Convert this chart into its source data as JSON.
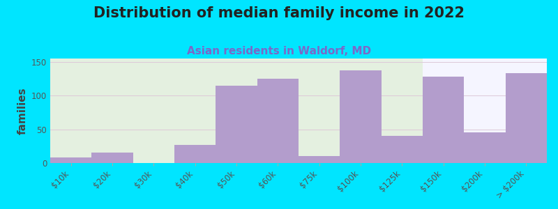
{
  "title": "Distribution of median family income in 2022",
  "subtitle": "Asian residents in Waldorf, MD",
  "ylabel": "families",
  "categories": [
    "$10k",
    "$20k",
    "$30k",
    "$40k",
    "$50k",
    "$60k",
    "$75k",
    "$100k",
    "$125k",
    "$150k",
    "$200k",
    "> $200k"
  ],
  "values": [
    8,
    15,
    0,
    27,
    115,
    125,
    10,
    137,
    40,
    128,
    45,
    133
  ],
  "bar_color": "#b39dcc",
  "background_outer": "#00e5ff",
  "background_plot_left": "#e4f0e0",
  "background_plot_right": "#f5f5ff",
  "grid_color": "#ddc8d8",
  "title_fontsize": 15,
  "subtitle_fontsize": 11,
  "ylabel_fontsize": 11,
  "tick_fontsize": 8.5,
  "ylim": [
    0,
    155
  ],
  "yticks": [
    0,
    50,
    100,
    150
  ],
  "split_idx": 9
}
